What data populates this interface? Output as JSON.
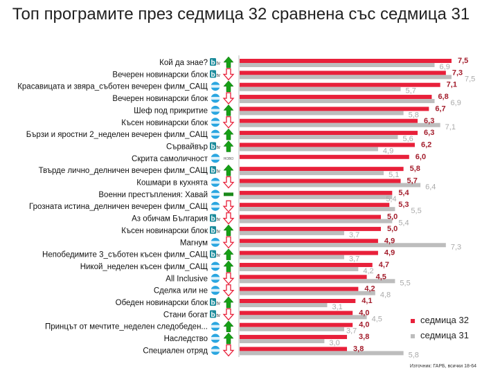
{
  "chart_data": {
    "type": "bar",
    "title": "Топ програмите през седмица 32 сравнена със седмица 31",
    "categories": [
      "Кой да знае?",
      "Вечерен новинарски блок",
      "Красавицата и звяра_съботен вечерен филм_САЩ",
      "Вечерен новинарски блок",
      "Шеф под прикритие",
      "Късен новинарски блок",
      "Бързи и яростни 2_неделен вечерен филм_САЩ",
      "Сървайвър",
      "Скрита самоличност",
      "Твърде лично_делничен вечерен филм_САЩ",
      "Кошмари в кухнята",
      "Военни престъпления: Хавай",
      "Грозната истина_делничен вечерен филм_САЩ",
      "Аз обичам България",
      "Късен новинарски блок",
      "Магнум",
      "Непобедимите 3_съботен късен филм_САЩ",
      "Никой_неделен късен филм_САЩ",
      "All Inclusive",
      "Сделка или не",
      "Обеден новинарски блок",
      "Стани богат",
      "Принцът от мечтите_неделен следобеден...",
      "Наследство",
      "Специален отряд"
    ],
    "channels": [
      "btv",
      "btv",
      "nova",
      "nova",
      "nova",
      "nova",
      "nova",
      "btv",
      "nova",
      "btv",
      "nova",
      "nova",
      "nova",
      "btv",
      "btv",
      "nova",
      "btv",
      "nova",
      "nova",
      "nova",
      "btv",
      "btv",
      "nova",
      "nova",
      "nova"
    ],
    "trend": [
      "up",
      "down",
      "up",
      "down",
      "up",
      "down",
      "up",
      "up",
      "new",
      "up",
      "down",
      "same",
      "down",
      "down",
      "up",
      "down",
      "up",
      "up",
      "down",
      "down",
      "up",
      "down",
      "up",
      "up",
      "down"
    ],
    "new_label": "НОВО",
    "series": [
      {
        "name": "седмица 32",
        "color": "#e8203a",
        "values": [
          7.5,
          7.3,
          7.1,
          6.8,
          6.7,
          6.3,
          6.3,
          6.2,
          6.0,
          5.8,
          5.7,
          5.4,
          5.3,
          5.0,
          5.0,
          4.9,
          4.9,
          4.7,
          4.5,
          4.2,
          4.1,
          4.0,
          4.0,
          3.8,
          3.8
        ]
      },
      {
        "name": "седмица 31",
        "color": "#bdbdbd",
        "values": [
          6.9,
          7.5,
          5.7,
          6.9,
          5.8,
          7.1,
          5.6,
          4.9,
          null,
          5.1,
          6.4,
          5.4,
          5.5,
          5.4,
          3.7,
          7.3,
          3.7,
          4.2,
          5.5,
          4.8,
          3.1,
          4.5,
          3.7,
          3.0,
          5.8
        ]
      }
    ],
    "value_labels": {
      "седмица 32": [
        "7,5",
        "7,3",
        "7,1",
        "6,8",
        "6,7",
        "6,3",
        "6,3",
        "6,2",
        "6,0",
        "5,8",
        "5,7",
        "5,4",
        "5,3",
        "5,0",
        "5,0",
        "4,9",
        "4,9",
        "4,7",
        "4,5",
        "4,2",
        "4,1",
        "4,0",
        "4,0",
        "3,8",
        "3,8"
      ],
      "седмица 31": [
        "6,9",
        "7,5",
        "5,7",
        "6,9",
        "5,8",
        "7,1",
        "5,6",
        "4,9",
        "",
        "5,1",
        "6,4",
        "5,4",
        "5,5",
        "5,4",
        "3,7",
        "7,3",
        "3,7",
        "4,2",
        "5,5",
        "4,8",
        "3,1",
        "4,5",
        "3,7",
        "3,0",
        "5,8"
      ]
    },
    "legend": "bottom-right",
    "source": "Източник: ГАРБ, всички 18-64"
  }
}
